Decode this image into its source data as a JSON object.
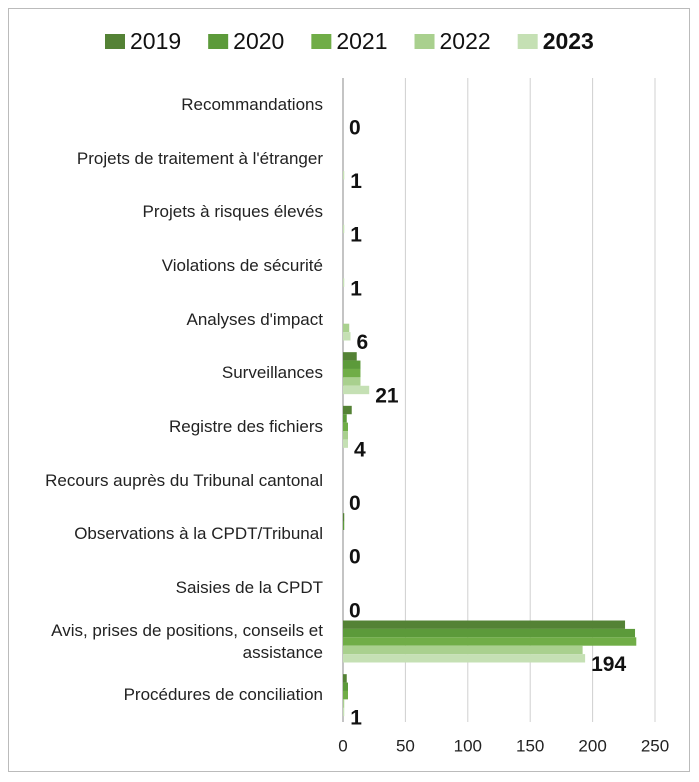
{
  "chart_data": {
    "type": "hbar",
    "categories": [
      "Recommandations",
      "Projets de traitement à l'étranger",
      "Projets à risques élevés",
      "Violations de sécurité",
      "Analyses d'impact",
      "Surveillances",
      "Registre des fichiers",
      "Recours auprès du Tribunal cantonal",
      "Observations à la CPDT/Tribunal",
      "Saisies de la CPDT",
      "Avis, prises de positions, conseils et assistance",
      "Procédures de conciliation"
    ],
    "series": [
      {
        "name": "2019",
        "color": "#548235",
        "values": [
          0,
          0,
          0,
          0,
          0,
          11,
          7,
          0,
          1,
          0,
          226,
          3
        ]
      },
      {
        "name": "2020",
        "color": "#5c9a3a",
        "values": [
          0,
          0,
          0,
          0,
          0,
          14,
          3,
          0,
          1,
          0,
          234,
          4
        ]
      },
      {
        "name": "2021",
        "color": "#70ad47",
        "values": [
          0,
          0,
          0,
          0,
          0,
          14,
          4,
          0,
          0,
          0,
          235,
          4
        ]
      },
      {
        "name": "2022",
        "color": "#a9d08e",
        "values": [
          0,
          0,
          0,
          0,
          5,
          14,
          4,
          0,
          0,
          0,
          192,
          1
        ]
      },
      {
        "name": "2023",
        "color": "#c5e0b4",
        "values": [
          0,
          1,
          1,
          1,
          6,
          21,
          4,
          0,
          0,
          0,
          194,
          1
        ]
      }
    ],
    "labeled_series": 4,
    "xlim": [
      0,
      250
    ],
    "xticks": [
      0,
      50,
      100,
      150,
      200,
      250
    ],
    "grid": true,
    "legend": "top"
  }
}
